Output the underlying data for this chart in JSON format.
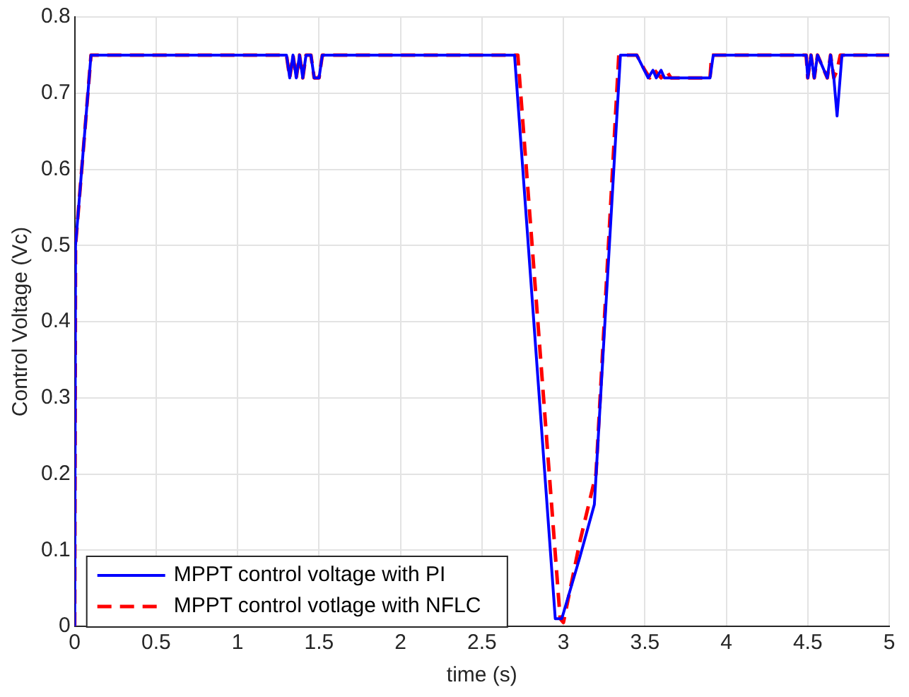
{
  "chart_data": {
    "type": "line",
    "xlabel": "time (s)",
    "ylabel": "Control Voltage (Vc)",
    "xlim": [
      0,
      5
    ],
    "ylim": [
      0,
      0.8
    ],
    "xticks": [
      0,
      0.5,
      1,
      1.5,
      2,
      2.5,
      3,
      3.5,
      4,
      4.5,
      5
    ],
    "yticks": [
      0,
      0.1,
      0.2,
      0.3,
      0.4,
      0.5,
      0.6,
      0.7,
      0.8
    ],
    "grid": true,
    "legend": "bottom left",
    "series": [
      {
        "name": "MPPT control voltage with PI",
        "color": "#0000ff",
        "line_style": "solid",
        "x": [
          0,
          0.005,
          0.1,
          1.3,
          1.32,
          1.34,
          1.36,
          1.38,
          1.4,
          1.42,
          1.45,
          1.47,
          1.5,
          1.52,
          2.7,
          2.95,
          2.99,
          3.1,
          3.19,
          3.35,
          3.45,
          3.52,
          3.55,
          3.57,
          3.6,
          3.62,
          3.65,
          3.9,
          3.92,
          4.49,
          4.5,
          4.52,
          4.54,
          4.56,
          4.62,
          4.64,
          4.66,
          4.68,
          4.71,
          5
        ],
        "values": [
          0,
          0.5,
          0.75,
          0.75,
          0.72,
          0.75,
          0.72,
          0.75,
          0.72,
          0.75,
          0.75,
          0.72,
          0.72,
          0.75,
          0.75,
          0.01,
          0.01,
          0.09,
          0.16,
          0.75,
          0.75,
          0.72,
          0.73,
          0.72,
          0.73,
          0.72,
          0.72,
          0.72,
          0.75,
          0.75,
          0.72,
          0.75,
          0.72,
          0.75,
          0.72,
          0.75,
          0.72,
          0.67,
          0.75,
          0.75
        ]
      },
      {
        "name": "MPPT control votlage with NFLC",
        "color": "#ff0000",
        "line_style": "dashed",
        "x": [
          0,
          0.005,
          0.1,
          1.3,
          1.32,
          1.34,
          1.36,
          1.38,
          1.4,
          1.42,
          1.45,
          1.47,
          1.5,
          1.52,
          2.72,
          2.98,
          3.0,
          3.1,
          3.2,
          3.34,
          3.45,
          3.5,
          3.53,
          3.56,
          3.6,
          3.63,
          3.66,
          3.9,
          3.91,
          4.49,
          4.5,
          4.52,
          4.54,
          4.56,
          4.62,
          4.64,
          4.66,
          4.68,
          4.7,
          5
        ],
        "values": [
          0,
          0.5,
          0.75,
          0.75,
          0.72,
          0.75,
          0.72,
          0.75,
          0.72,
          0.75,
          0.75,
          0.72,
          0.72,
          0.75,
          0.75,
          0.01,
          0.005,
          0.11,
          0.2,
          0.75,
          0.75,
          0.73,
          0.72,
          0.73,
          0.72,
          0.73,
          0.72,
          0.72,
          0.75,
          0.75,
          0.72,
          0.75,
          0.72,
          0.75,
          0.72,
          0.75,
          0.72,
          0.73,
          0.75,
          0.75
        ]
      }
    ]
  }
}
